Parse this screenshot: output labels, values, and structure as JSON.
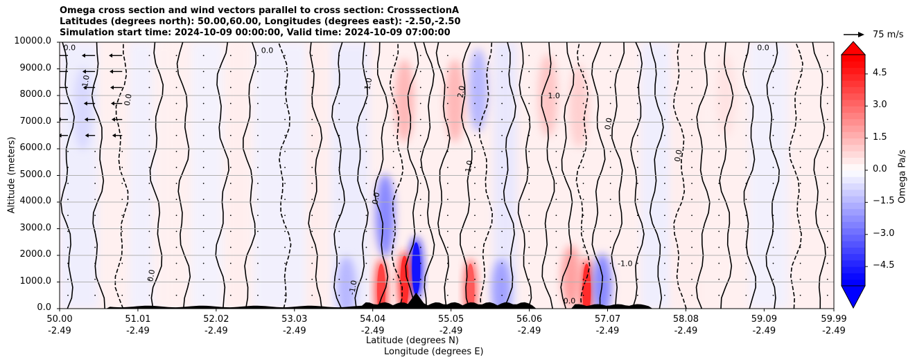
{
  "chart_data": {
    "type": "heatmap",
    "title": [
      "Omega cross section and wind vectors parallel to cross section: CrosssectionA",
      "Latitudes (degrees north): 50.00,60.00, Longitudes (degrees east): -2.50,-2.50",
      "Simulation start time: 2024-10-09 00:00:00, Valid time: 2024-10-09 07:00:00"
    ],
    "ylabel": "Altitude (meters)",
    "xlabel_lat": "Latitude (degrees N)",
    "xlabel_lon": "Longitude (degrees E)",
    "ylim": [
      0,
      10000
    ],
    "xlim": [
      50.0,
      59.99
    ],
    "y_ticks": [
      "0.0",
      "1000.0",
      "2000.0",
      "3000.0",
      "4000.0",
      "5000.0",
      "6000.0",
      "7000.0",
      "8000.0",
      "9000.0",
      "10000.0"
    ],
    "y_tick_values": [
      0,
      1000,
      2000,
      3000,
      4000,
      5000,
      6000,
      7000,
      8000,
      9000,
      10000
    ],
    "x_ticks": [
      {
        "lat": "50.00",
        "lon": "-2.49",
        "value": 50.0
      },
      {
        "lat": "51.01",
        "lon": "-2.49",
        "value": 51.01
      },
      {
        "lat": "52.02",
        "lon": "-2.49",
        "value": 52.02
      },
      {
        "lat": "53.03",
        "lon": "-2.49",
        "value": 53.03
      },
      {
        "lat": "54.04",
        "lon": "-2.49",
        "value": 54.04
      },
      {
        "lat": "55.05",
        "lon": "-2.49",
        "value": 55.05
      },
      {
        "lat": "56.06",
        "lon": "-2.49",
        "value": 56.06
      },
      {
        "lat": "57.07",
        "lon": "-2.49",
        "value": 57.07
      },
      {
        "lat": "58.08",
        "lon": "-2.49",
        "value": 58.08
      },
      {
        "lat": "59.09",
        "lon": "-2.49",
        "value": 59.09
      },
      {
        "lat": "59.99",
        "lon": "-2.49",
        "value": 59.99
      }
    ],
    "grid": "horizontal",
    "colorbar": {
      "label": "Omega Pa/s",
      "range": [
        -5.4,
        5.4
      ],
      "ticks": [
        "4.5",
        "3.0",
        "1.5",
        "0.0",
        "−1.5",
        "−3.0",
        "−4.5"
      ],
      "tick_values": [
        4.5,
        3.0,
        1.5,
        0.0,
        -1.5,
        -3.0,
        -4.5
      ],
      "colormap": "bwr",
      "extend": "both"
    },
    "quiver_key": "75 m/s",
    "omega_features": [
      {
        "lat": 54.6,
        "alt": 1500,
        "omega": -5.0
      },
      {
        "lat": 54.45,
        "alt": 1000,
        "omega": 4.5
      },
      {
        "lat": 54.15,
        "alt": 700,
        "omega": 4.0
      },
      {
        "lat": 55.3,
        "alt": 700,
        "omega": 3.5
      },
      {
        "lat": 55.7,
        "alt": 700,
        "omega": -2.0
      },
      {
        "lat": 56.8,
        "alt": 700,
        "omega": 4.5
      },
      {
        "lat": 56.6,
        "alt": 1200,
        "omega": 2.0
      },
      {
        "lat": 57.0,
        "alt": 900,
        "omega": -2.5
      },
      {
        "lat": 54.2,
        "alt": 3500,
        "omega": -2.5
      },
      {
        "lat": 54.45,
        "alt": 7800,
        "omega": 1.5
      },
      {
        "lat": 55.4,
        "alt": 8200,
        "omega": -1.5
      },
      {
        "lat": 55.1,
        "alt": 7800,
        "omega": 1.5
      },
      {
        "lat": 56.3,
        "alt": 8000,
        "omega": 1.2
      },
      {
        "lat": 56.7,
        "alt": 7600,
        "omega": 1.0
      },
      {
        "lat": 50.3,
        "alt": 7500,
        "omega": -0.8
      },
      {
        "lat": 53.7,
        "alt": 800,
        "omega": -1.5
      },
      {
        "lat": 58.6,
        "alt": 8000,
        "omega": 0.6
      }
    ],
    "contour_labels": [
      "0.0",
      "-1.0",
      "1.0",
      "2.0",
      "0.0",
      "-1.0",
      "1.0"
    ]
  },
  "colors": {
    "positive": "#ff0000",
    "negative": "#0000ff",
    "grid": "#b0b0b0",
    "terrain": "#000000"
  }
}
